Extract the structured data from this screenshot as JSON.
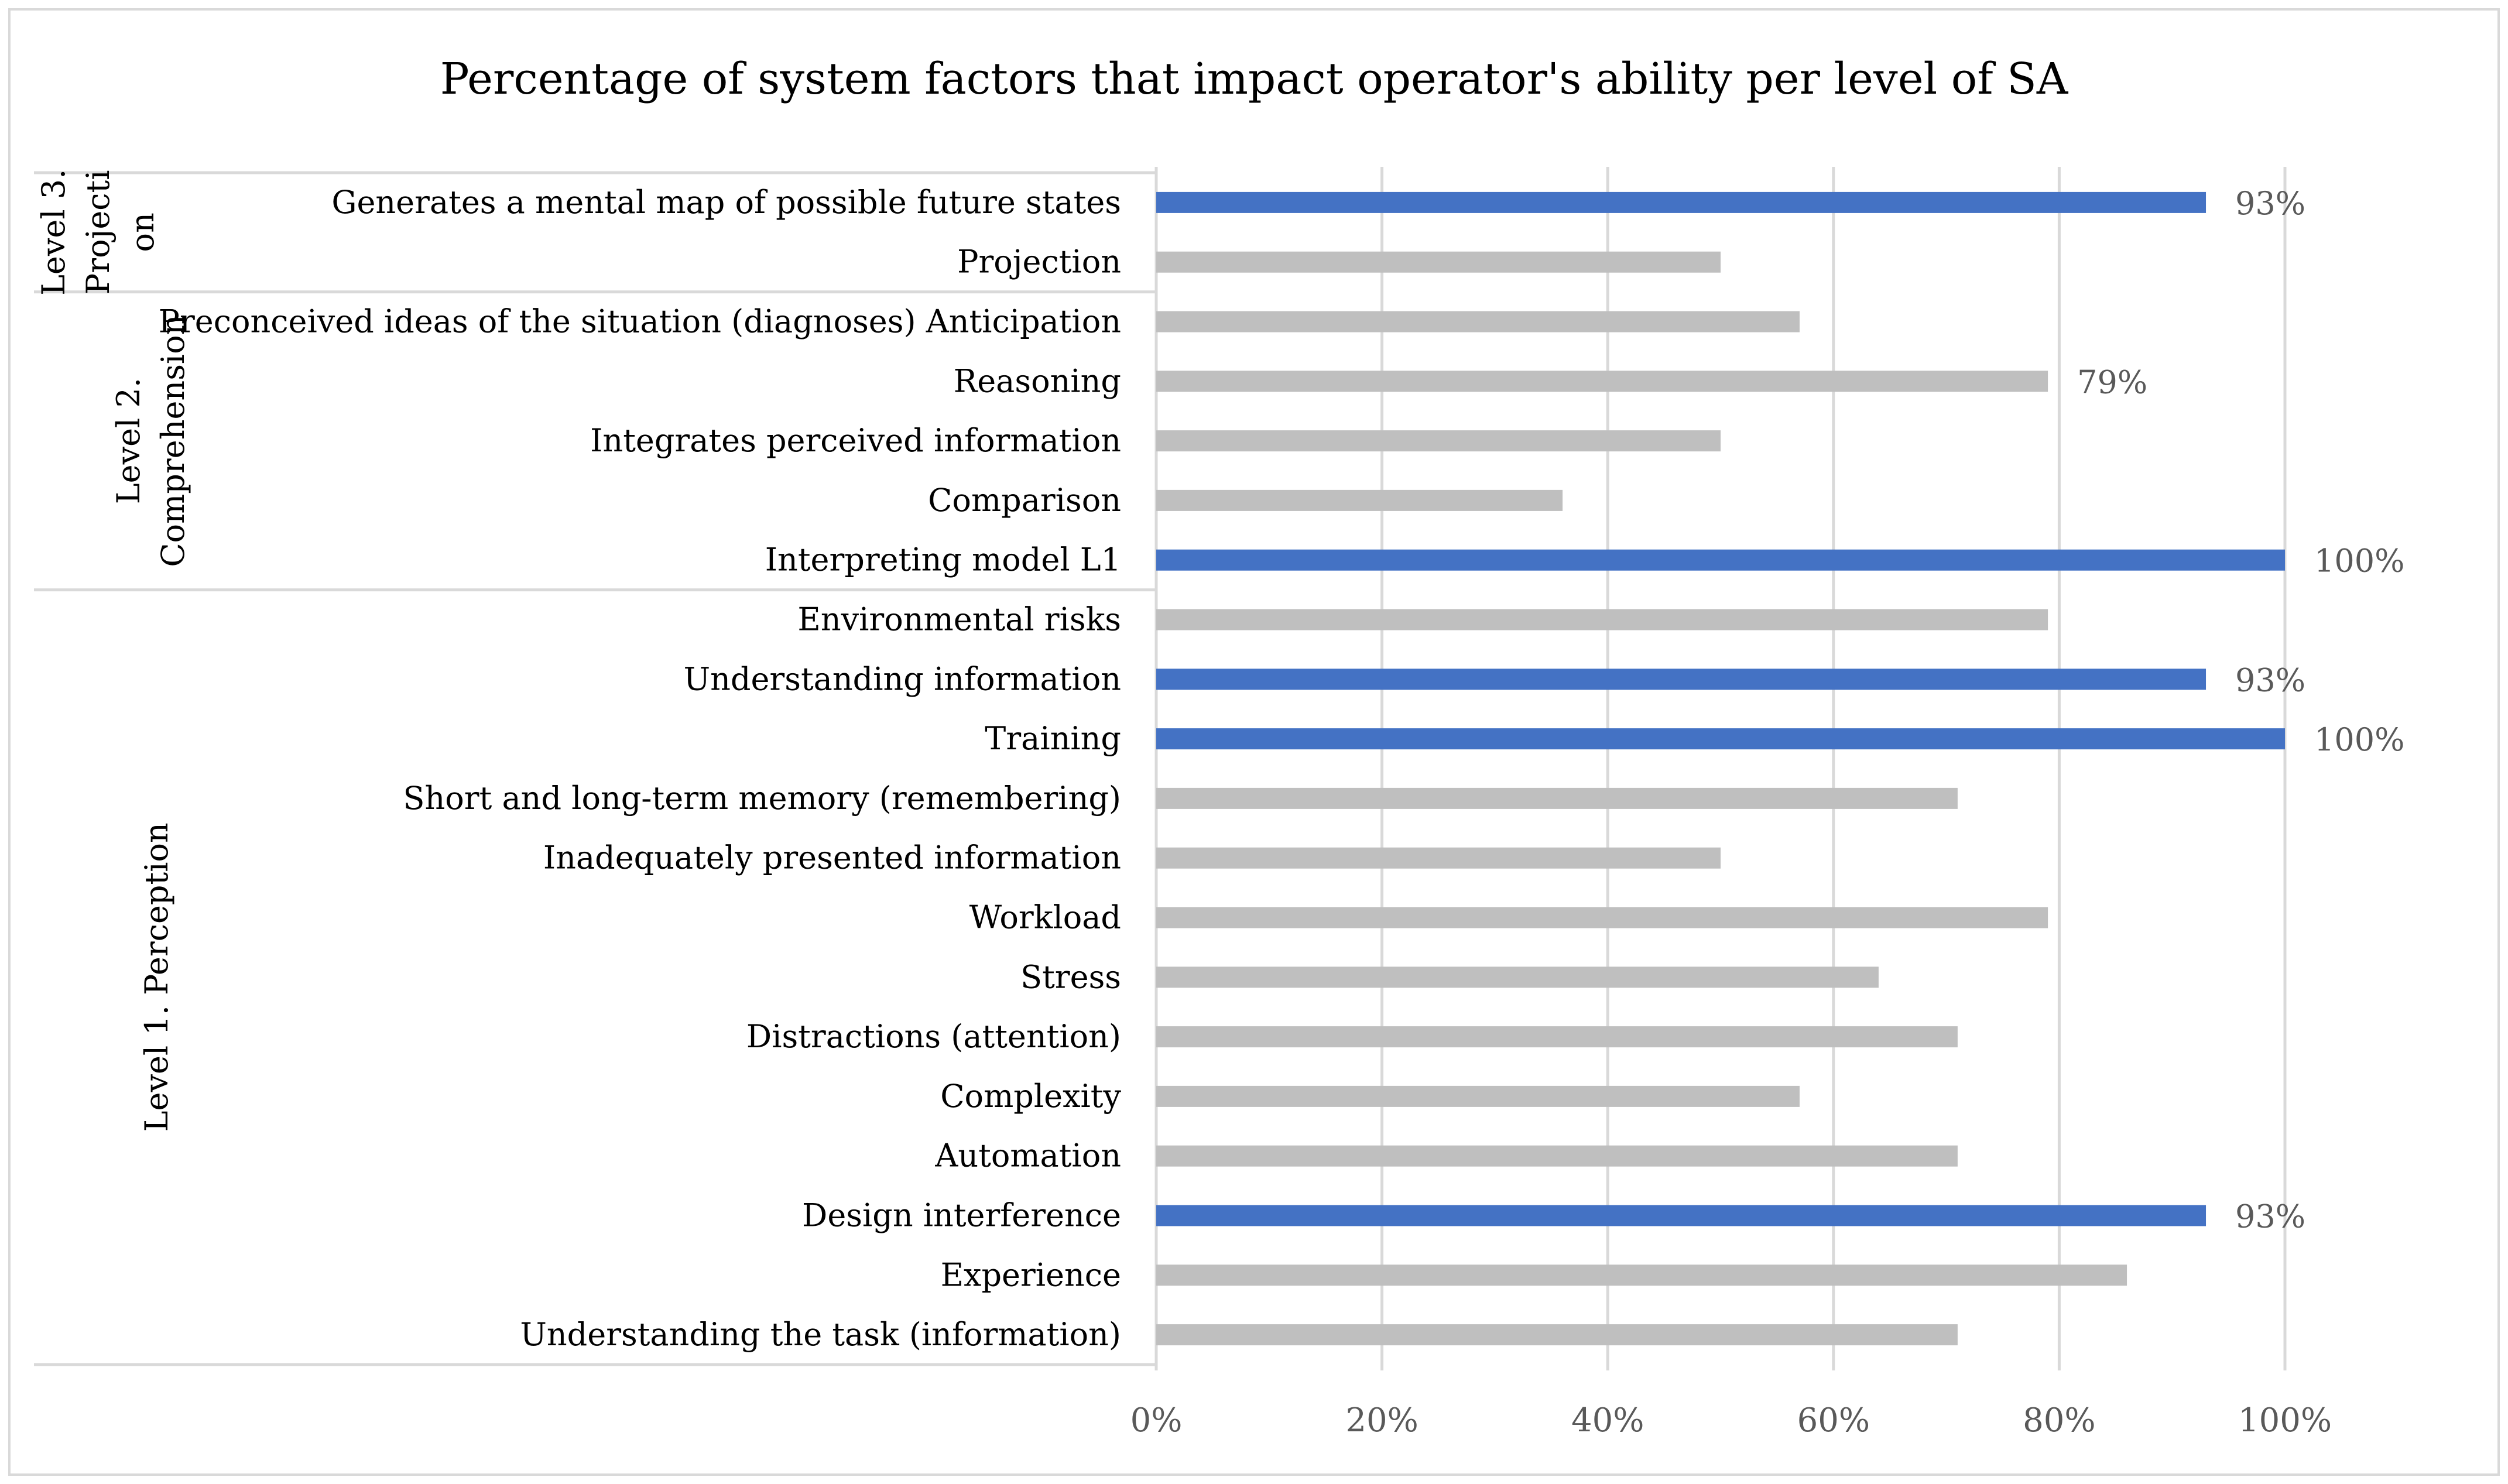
{
  "chart_data": {
    "type": "bar",
    "orientation": "horizontal",
    "title": "Percentage of system factors that impact operator's ability per level of SA",
    "xlim": [
      0,
      100
    ],
    "x_ticks": [
      "0%",
      "20%",
      "40%",
      "60%",
      "80%",
      "100%"
    ],
    "grid": true,
    "legend": "none",
    "colors": {
      "highlight": "#4472c4",
      "default": "#bfbfbf"
    },
    "groups": [
      {
        "name": "Level 3. Projection",
        "label_lines": [
          "Level 3.",
          "Projecti",
          "on"
        ]
      },
      {
        "name": "Level 2. Comprehension",
        "label_lines": [
          "Level 2.",
          "Comprehension"
        ]
      },
      {
        "name": "Level 1. Perception",
        "label_lines": [
          "Level 1. Perception"
        ]
      }
    ],
    "categories": [
      "Generates a mental map of possible future states",
      "Projection",
      "Preconceived ideas of the situation (diagnoses) Anticipation",
      "Reasoning",
      "Integrates perceived information",
      "Comparison",
      "Interpreting model L1",
      "Environmental risks",
      "Understanding information",
      "Training",
      "Short and long-term memory (remembering)",
      "Inadequately presented information",
      "Workload",
      "Stress",
      "Distractions (attention)",
      "Complexity",
      "Automation",
      "Design interference",
      "Experience",
      "Understanding the task (information)"
    ],
    "category_group": [
      0,
      0,
      1,
      1,
      1,
      1,
      1,
      2,
      2,
      2,
      2,
      2,
      2,
      2,
      2,
      2,
      2,
      2,
      2,
      2
    ],
    "values": [
      93,
      50,
      57,
      79,
      50,
      36,
      100,
      79,
      93,
      100,
      71,
      50,
      79,
      64,
      71,
      57,
      71,
      93,
      86,
      71
    ],
    "highlighted": [
      true,
      false,
      false,
      false,
      false,
      false,
      true,
      false,
      true,
      true,
      false,
      false,
      false,
      false,
      false,
      false,
      false,
      true,
      false,
      false
    ],
    "data_labels": [
      "93%",
      "",
      "",
      "79%",
      "",
      "",
      "100%",
      "",
      "93%",
      "100%",
      "",
      "",
      "",
      "",
      "",
      "",
      "",
      "93%",
      "",
      ""
    ]
  }
}
